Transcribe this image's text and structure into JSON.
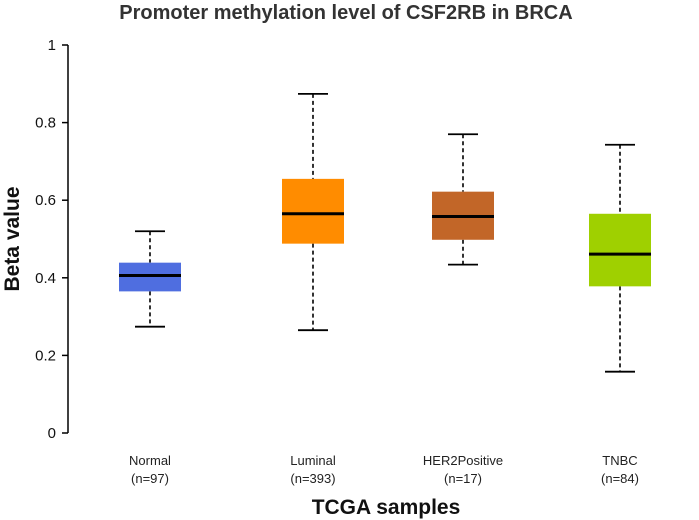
{
  "chart_data": {
    "type": "boxplot",
    "title": "Promoter methylation level of CSF2RB in BRCA",
    "xlabel": "TCGA samples",
    "ylabel": "Beta value",
    "ylim": [
      0,
      1
    ],
    "yticks": [
      0,
      0.2,
      0.4,
      0.6,
      0.8,
      1
    ],
    "ytick_labels": [
      "0",
      "0.2",
      "0.4",
      "0.6",
      "0.8",
      "1"
    ],
    "grid": false,
    "groups": [
      {
        "name": "Normal",
        "n_label": "(n=97)",
        "min": 0.274,
        "q1": 0.365,
        "median": 0.406,
        "q3": 0.439,
        "max": 0.52,
        "color": "#4f6ee0"
      },
      {
        "name": "Luminal",
        "n_label": "(n=393)",
        "min": 0.265,
        "q1": 0.488,
        "median": 0.565,
        "q3": 0.655,
        "max": 0.874,
        "color": "#ff8c00"
      },
      {
        "name": "HER2Positive",
        "n_label": "(n=17)",
        "min": 0.434,
        "q1": 0.498,
        "median": 0.558,
        "q3": 0.622,
        "max": 0.77,
        "color": "#c26628"
      },
      {
        "name": "TNBC",
        "n_label": "(n=84)",
        "min": 0.158,
        "q1": 0.378,
        "median": 0.461,
        "q3": 0.565,
        "max": 0.743,
        "color": "#9fd000"
      }
    ]
  }
}
